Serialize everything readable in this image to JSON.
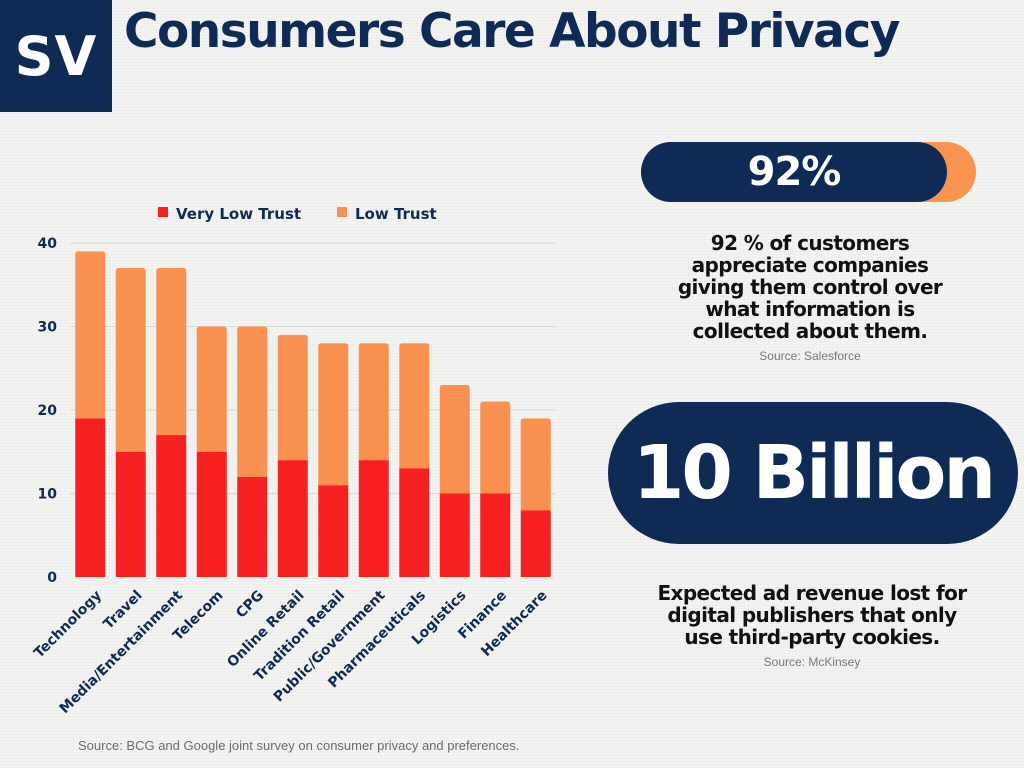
{
  "logo": {
    "text": "SV"
  },
  "header": {
    "title": "Consumers Care About Privacy"
  },
  "chart_data": {
    "type": "bar",
    "stacked": true,
    "categories": [
      "Technology",
      "Travel",
      "Media/Entertainment",
      "Telecom",
      "CPG",
      "Online Retail",
      "Tradition Retail",
      "Public/Government",
      "Pharmaceuticals",
      "Logistics",
      "Finance",
      "Healthcare"
    ],
    "series": [
      {
        "name": "Very Low Trust",
        "color": "#f82121",
        "values": [
          19,
          15,
          17,
          15,
          12,
          14,
          11,
          14,
          13,
          10,
          10,
          8
        ]
      },
      {
        "name": "Low Trust",
        "color": "#fb9150",
        "values": [
          20,
          22,
          20,
          15,
          18,
          15,
          17,
          14,
          15,
          13,
          11,
          11
        ]
      }
    ],
    "yticks": [
      "0",
      "10",
      "20",
      "30",
      "40"
    ],
    "ylim": [
      0,
      40
    ],
    "grid": true,
    "legend_position": "top-center",
    "source": "Source: BCG and Google joint survey on consumer privacy and preferences."
  },
  "stat1": {
    "value": "92%",
    "lines": [
      "92 % of customers",
      "appreciate companies",
      "giving them control over",
      "what information is",
      "collected about them."
    ],
    "source": "Source: Salesforce"
  },
  "stat2": {
    "value": "10 Billion",
    "lines": [
      "Expected ad revenue lost for",
      "digital publishers that only",
      "use third-party cookies."
    ],
    "source": "Source: McKinsey"
  }
}
